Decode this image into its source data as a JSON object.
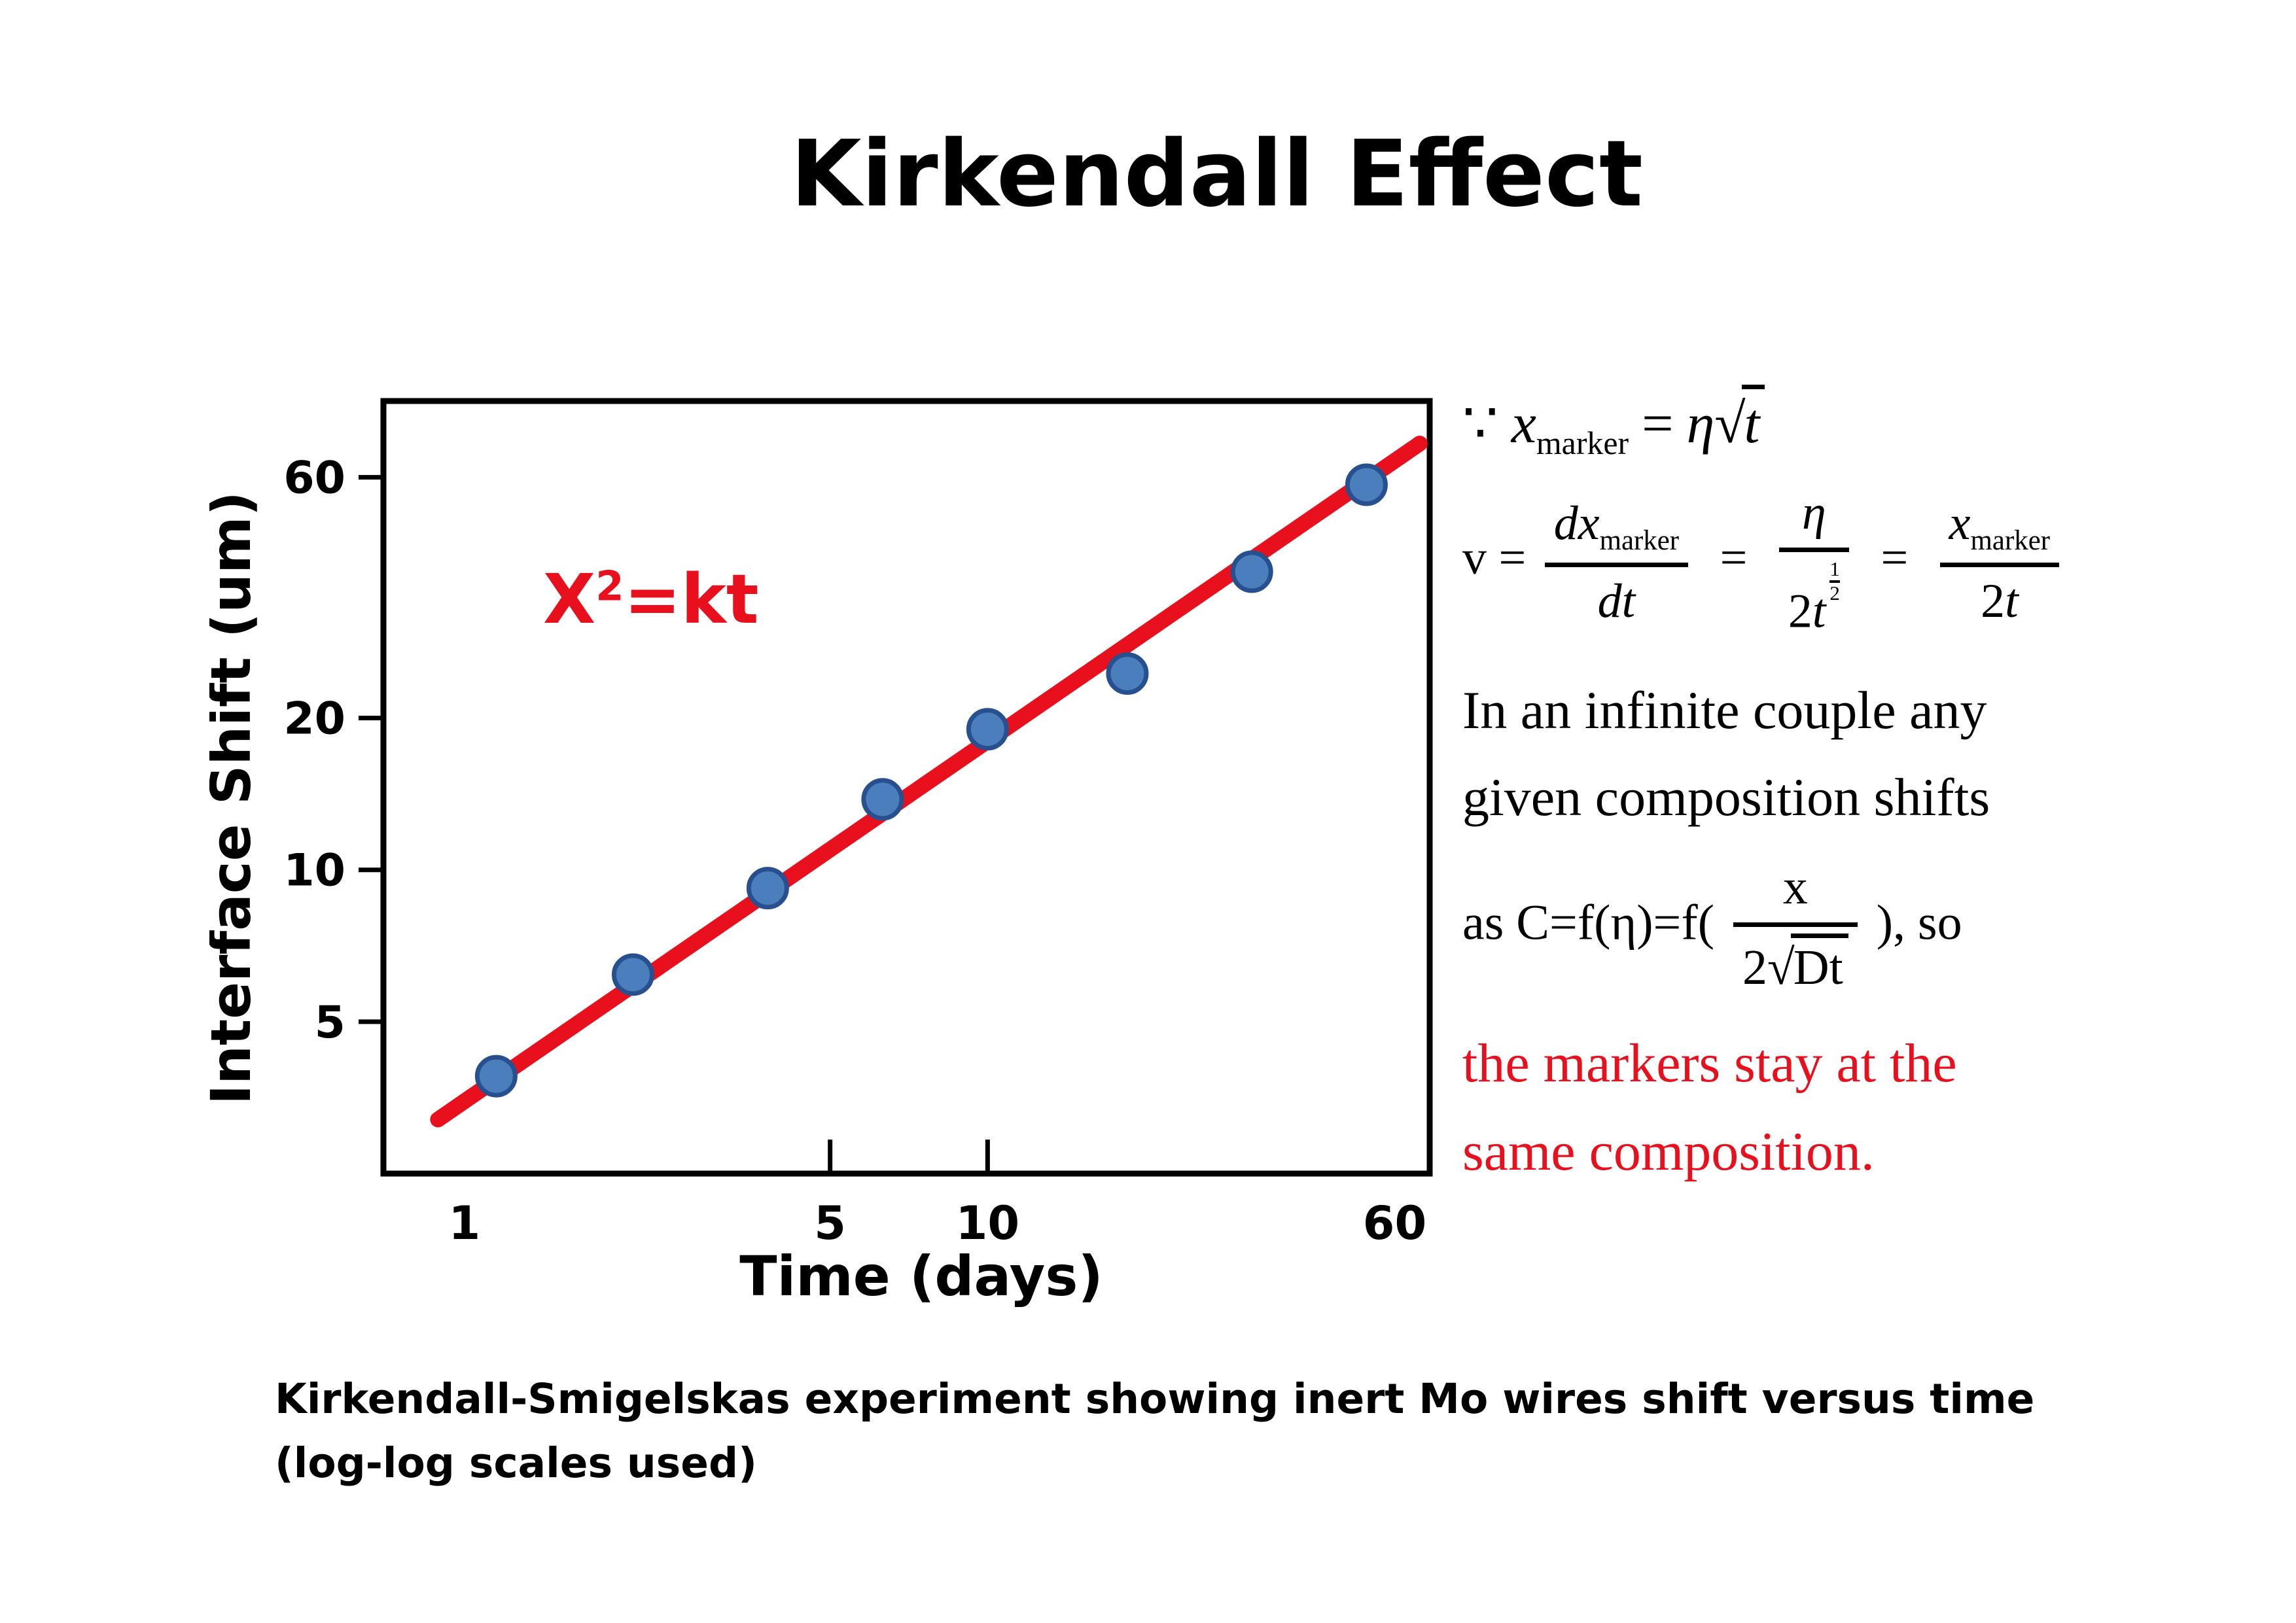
{
  "slide": {
    "title": "Kirkendall Effect",
    "caption_line1": "Kirkendall-Smigelskas experiment showing inert Mo wires shift versus time",
    "caption_line2": "(log-log scales used)"
  },
  "colors": {
    "red": "#e8101c",
    "point_fill": "#4a7ebc",
    "point_stroke": "#28508f",
    "axis_black": "#000000"
  },
  "annotation": {
    "base": "X",
    "exponent": "2",
    "suffix": "=kt"
  },
  "chart_data": {
    "type": "scatter",
    "title": "",
    "xlabel": "Time (days)",
    "ylabel": "Interface Shift (um)",
    "xscale": "log",
    "yscale": "log",
    "xlim": [
      0.7,
      70
    ],
    "ylim": [
      2.5,
      85
    ],
    "x_ticks": [
      1,
      5,
      10,
      60
    ],
    "x_inner_ticks": [
      5,
      10
    ],
    "y_ticks": [
      60,
      20,
      10,
      5
    ],
    "points": [
      [
        1.15,
        3.9
      ],
      [
        2.1,
        6.2
      ],
      [
        3.8,
        9.2
      ],
      [
        6.3,
        13.8
      ],
      [
        10,
        19
      ],
      [
        18.5,
        24.5
      ],
      [
        32,
        39
      ],
      [
        53,
        58
      ]
    ],
    "fit_line": {
      "x": [
        0.89,
        67
      ],
      "y": [
        3.2,
        70
      ]
    },
    "fit_relation": "X2=kt",
    "grid": false,
    "legend": "none"
  },
  "equations": {
    "line1": {
      "because": "∵",
      "var": "x",
      "var_sub": "marker",
      "eq": "=",
      "coef": "η",
      "radical": "√",
      "radicand": "t"
    },
    "line2": {
      "lhs": "v =",
      "f1_num": "dx",
      "f1_sub": "marker",
      "f1_den": "dt",
      "eq2": "=",
      "f2_num": "η",
      "f2_den_coef": "2",
      "f2_den_var": "t",
      "f2_exp_num": "1",
      "f2_exp_den": "2",
      "eq3": "=",
      "f3_num": "x",
      "f3_sub": "marker",
      "f3_den_coef": "2",
      "f3_den_var": "t"
    },
    "para_line1": "In an infinite couple any",
    "para_line2": "given composition shifts",
    "line3": {
      "prefix": "as C=f(η)=f(",
      "num": "x",
      "den_coef": "2",
      "radical": "√",
      "den_rad": "Dt",
      "suffix": "), so"
    },
    "red_line1": "the markers stay at the",
    "red_line2": "same composition."
  }
}
